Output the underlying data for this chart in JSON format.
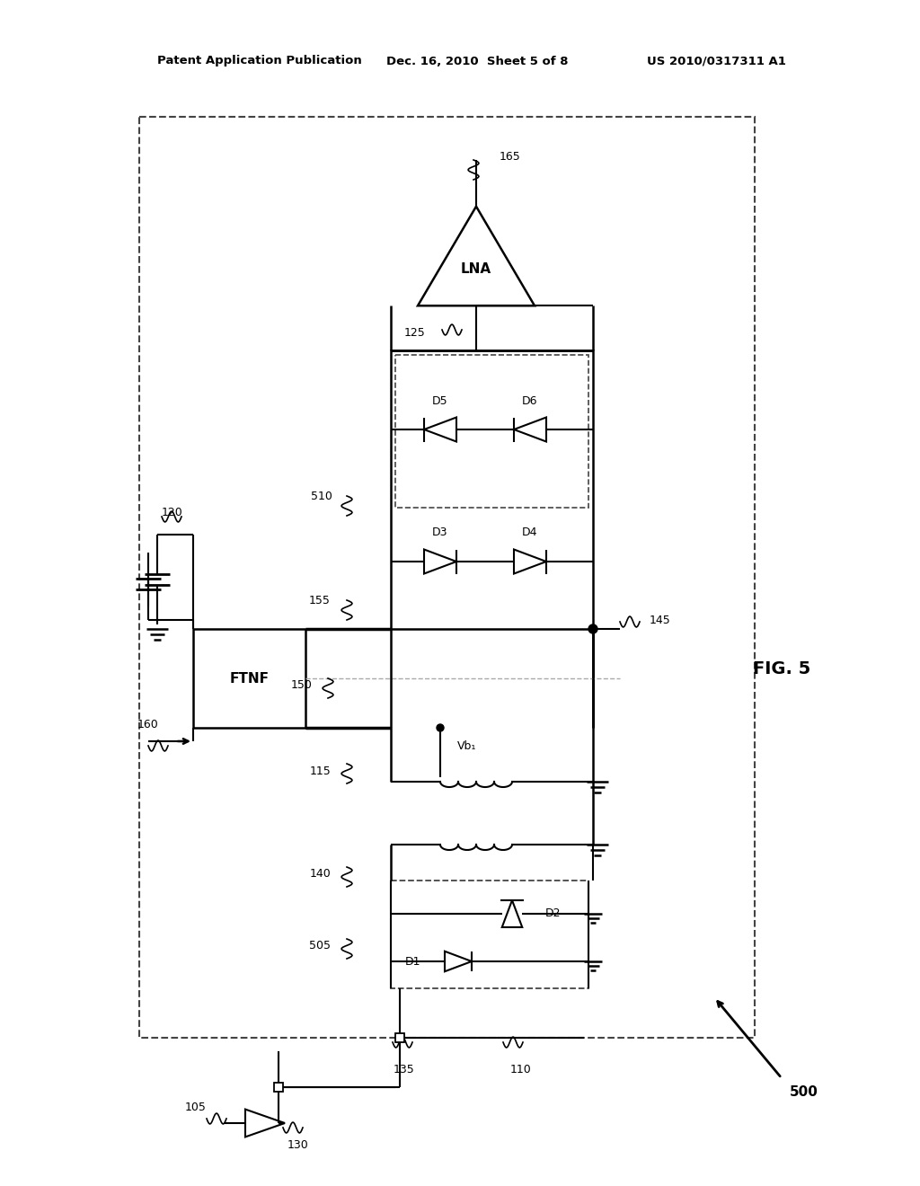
{
  "header_left": "Patent Application Publication",
  "header_mid": "Dec. 16, 2010  Sheet 5 of 8",
  "header_right": "US 2010/0317311 A1",
  "fig_label": "FIG. 5",
  "circuit_number": "500",
  "background": "#ffffff",
  "line_color": "#000000"
}
